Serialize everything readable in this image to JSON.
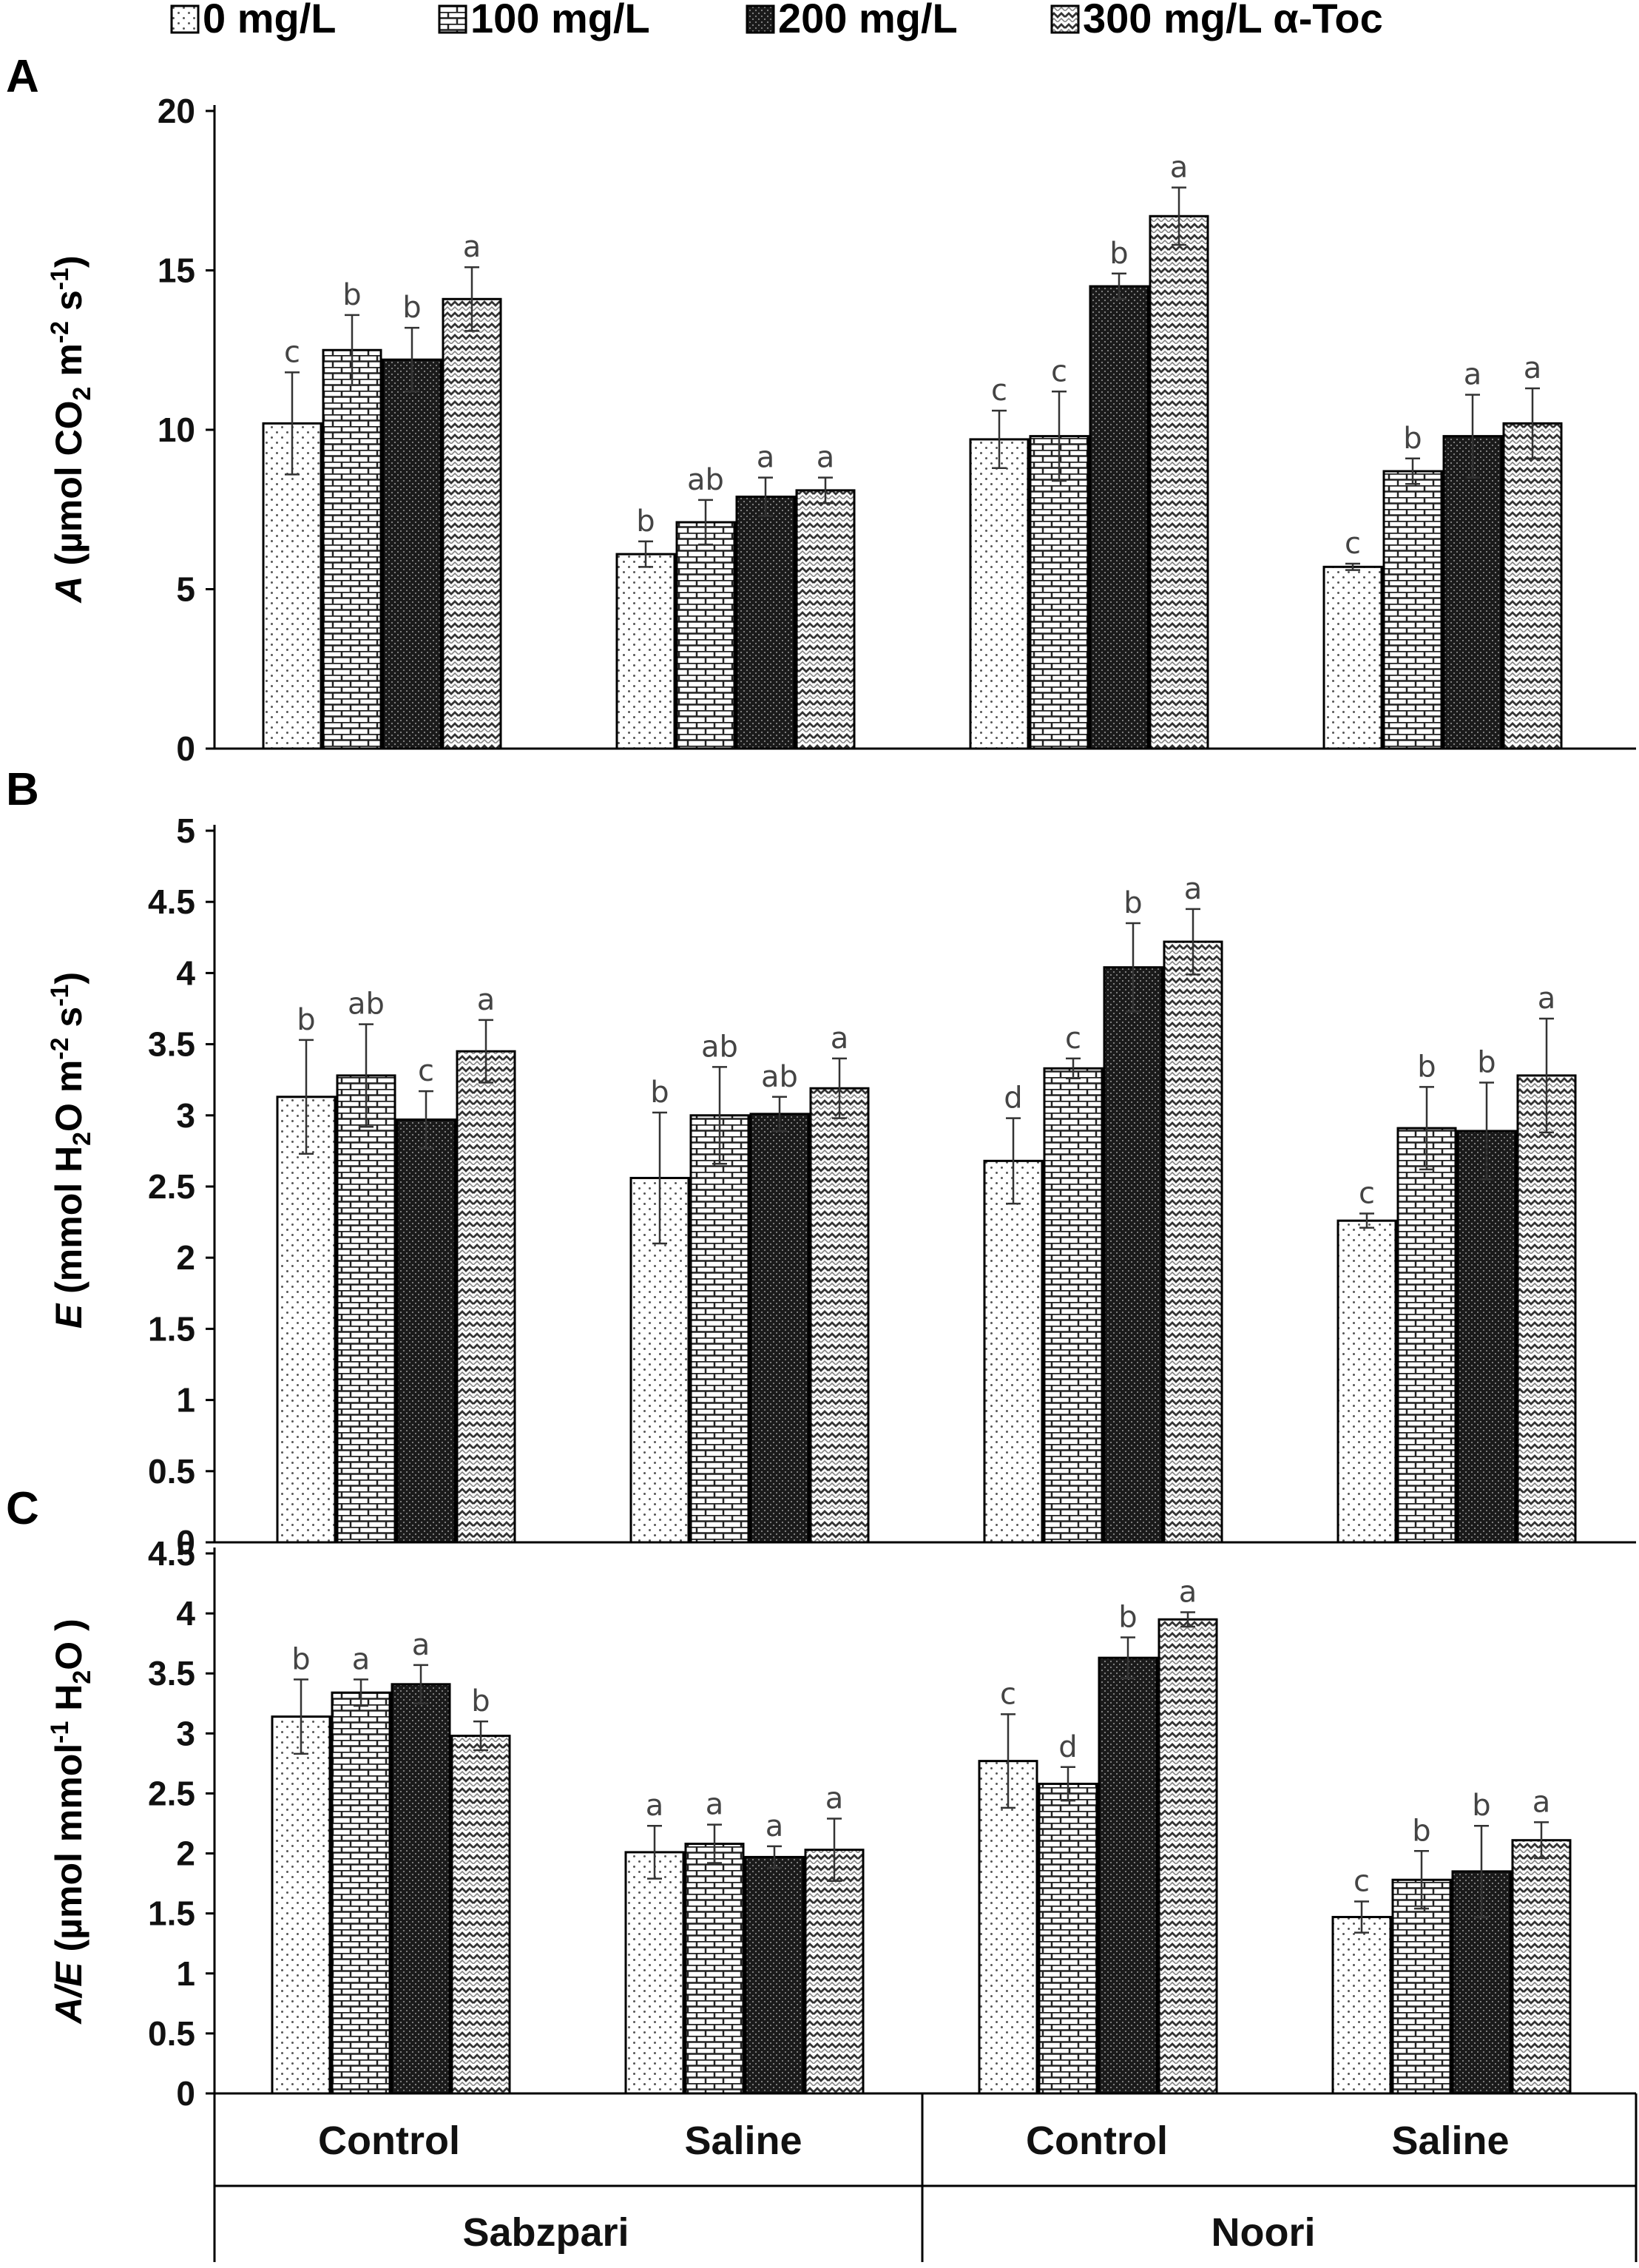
{
  "legend": {
    "items": [
      {
        "label": "0 mg/L",
        "pattern": "dots"
      },
      {
        "label": "100 mg/L",
        "pattern": "bricks"
      },
      {
        "label": "200 mg/L",
        "pattern": "dense"
      },
      {
        "label": "300 mg/L α-Toc",
        "pattern": "zigzag"
      }
    ]
  },
  "x_axis": {
    "groups": [
      "Control",
      "Saline",
      "Control",
      "Saline"
    ],
    "cultivars": [
      "Sabzpari",
      "Noori"
    ]
  },
  "chart_data": [
    {
      "type": "bar",
      "panel": "A",
      "ylabel_italic": "A",
      "ylabel_main": " (µmol CO",
      "ylabel_sub": "2",
      "ylabel_mid": " m",
      "ylabel_sup1": "-2",
      "ylabel_mid2": " s",
      "ylabel_sup2": "-1",
      "ylabel_end": ")",
      "ylim": [
        0,
        20
      ],
      "yticks": [
        "0",
        "5",
        "10",
        "15",
        "20"
      ],
      "categories": [
        "Sabzpari Control",
        "Sabzpari Saline",
        "Noori Control",
        "Noori Saline"
      ],
      "series": [
        {
          "name": "0 mg/L",
          "values": [
            10.2,
            6.1,
            9.7,
            5.7
          ],
          "errors": [
            1.6,
            0.4,
            0.9,
            0.1
          ],
          "letters": [
            "c",
            "b",
            "c",
            "c"
          ]
        },
        {
          "name": "100 mg/L",
          "values": [
            12.5,
            7.1,
            9.8,
            8.7
          ],
          "errors": [
            1.1,
            0.7,
            1.4,
            0.4
          ],
          "letters": [
            "b",
            "ab",
            "c",
            "b"
          ]
        },
        {
          "name": "200 mg/L",
          "values": [
            12.2,
            7.9,
            14.5,
            9.8
          ],
          "errors": [
            1.0,
            0.6,
            0.4,
            1.3
          ],
          "letters": [
            "b",
            "a",
            "b",
            "a"
          ]
        },
        {
          "name": "300 mg/L α-Toc",
          "values": [
            14.1,
            8.1,
            16.7,
            10.2
          ],
          "errors": [
            1.0,
            0.4,
            0.9,
            1.1
          ],
          "letters": [
            "a",
            "a",
            "a",
            "a"
          ]
        }
      ]
    },
    {
      "type": "bar",
      "panel": "B",
      "ylabel_italic": "E",
      "ylabel_main": " (mmol H",
      "ylabel_sub": "2",
      "ylabel_mid": "O m",
      "ylabel_sup1": "-2",
      "ylabel_mid2": " s",
      "ylabel_sup2": "-1",
      "ylabel_end": ")",
      "ylim": [
        0,
        5
      ],
      "yticks": [
        "0",
        "0.5",
        "1",
        "1.5",
        "2",
        "2.5",
        "3",
        "3.5",
        "4",
        "4.5",
        "5"
      ],
      "categories": [
        "Sabzpari Control",
        "Sabzpari Saline",
        "Noori Control",
        "Noori Saline"
      ],
      "series": [
        {
          "name": "0 mg/L",
          "values": [
            3.13,
            2.56,
            2.68,
            2.26
          ],
          "errors": [
            0.4,
            0.46,
            0.3,
            0.05
          ],
          "letters": [
            "b",
            "b",
            "d",
            "c"
          ]
        },
        {
          "name": "100 mg/L",
          "values": [
            3.28,
            3.0,
            3.33,
            2.91
          ],
          "errors": [
            0.36,
            0.34,
            0.07,
            0.29
          ],
          "letters": [
            "ab",
            "ab",
            "c",
            "b"
          ]
        },
        {
          "name": "200 mg/L",
          "values": [
            2.97,
            3.01,
            4.04,
            2.89
          ],
          "errors": [
            0.2,
            0.12,
            0.31,
            0.34
          ],
          "letters": [
            "c",
            "ab",
            "b",
            "b"
          ]
        },
        {
          "name": "300 mg/L α-Toc",
          "values": [
            3.45,
            3.19,
            4.22,
            3.28
          ],
          "errors": [
            0.22,
            0.21,
            0.23,
            0.4
          ],
          "letters": [
            "a",
            "a",
            "a",
            "a"
          ]
        }
      ]
    },
    {
      "type": "bar",
      "panel": "C",
      "ylabel_italic": "A/E",
      "ylabel_main": " (µmol mmol",
      "ylabel_sub": "",
      "ylabel_mid": "",
      "ylabel_sup1": "-1",
      "ylabel_mid2": " H",
      "ylabel_sup2": "",
      "ylabel_sub2": "2",
      "ylabel_end": "O )",
      "ylim": [
        0,
        4.5
      ],
      "yticks": [
        "0",
        "0.5",
        "1",
        "1.5",
        "2",
        "2.5",
        "3",
        "3.5",
        "4",
        "4.5"
      ],
      "categories": [
        "Sabzpari Control",
        "Sabzpari Saline",
        "Noori Control",
        "Noori Saline"
      ],
      "series": [
        {
          "name": "0 mg/L",
          "values": [
            3.14,
            2.01,
            2.77,
            1.47
          ],
          "errors": [
            0.31,
            0.22,
            0.39,
            0.13
          ],
          "letters": [
            "b",
            "a",
            "c",
            "c"
          ]
        },
        {
          "name": "100 mg/L",
          "values": [
            3.34,
            2.08,
            2.58,
            1.78
          ],
          "errors": [
            0.11,
            0.16,
            0.14,
            0.24
          ],
          "letters": [
            "a",
            "a",
            "d",
            "b"
          ]
        },
        {
          "name": "200 mg/L",
          "values": [
            3.41,
            1.97,
            3.63,
            1.85
          ],
          "errors": [
            0.16,
            0.09,
            0.17,
            0.38
          ],
          "letters": [
            "a",
            "a",
            "b",
            "b"
          ]
        },
        {
          "name": "300 mg/L α-Toc",
          "values": [
            2.98,
            2.03,
            3.95,
            2.11
          ],
          "errors": [
            0.12,
            0.26,
            0.06,
            0.15
          ],
          "letters": [
            "b",
            "a",
            "a",
            "a"
          ]
        }
      ]
    }
  ]
}
